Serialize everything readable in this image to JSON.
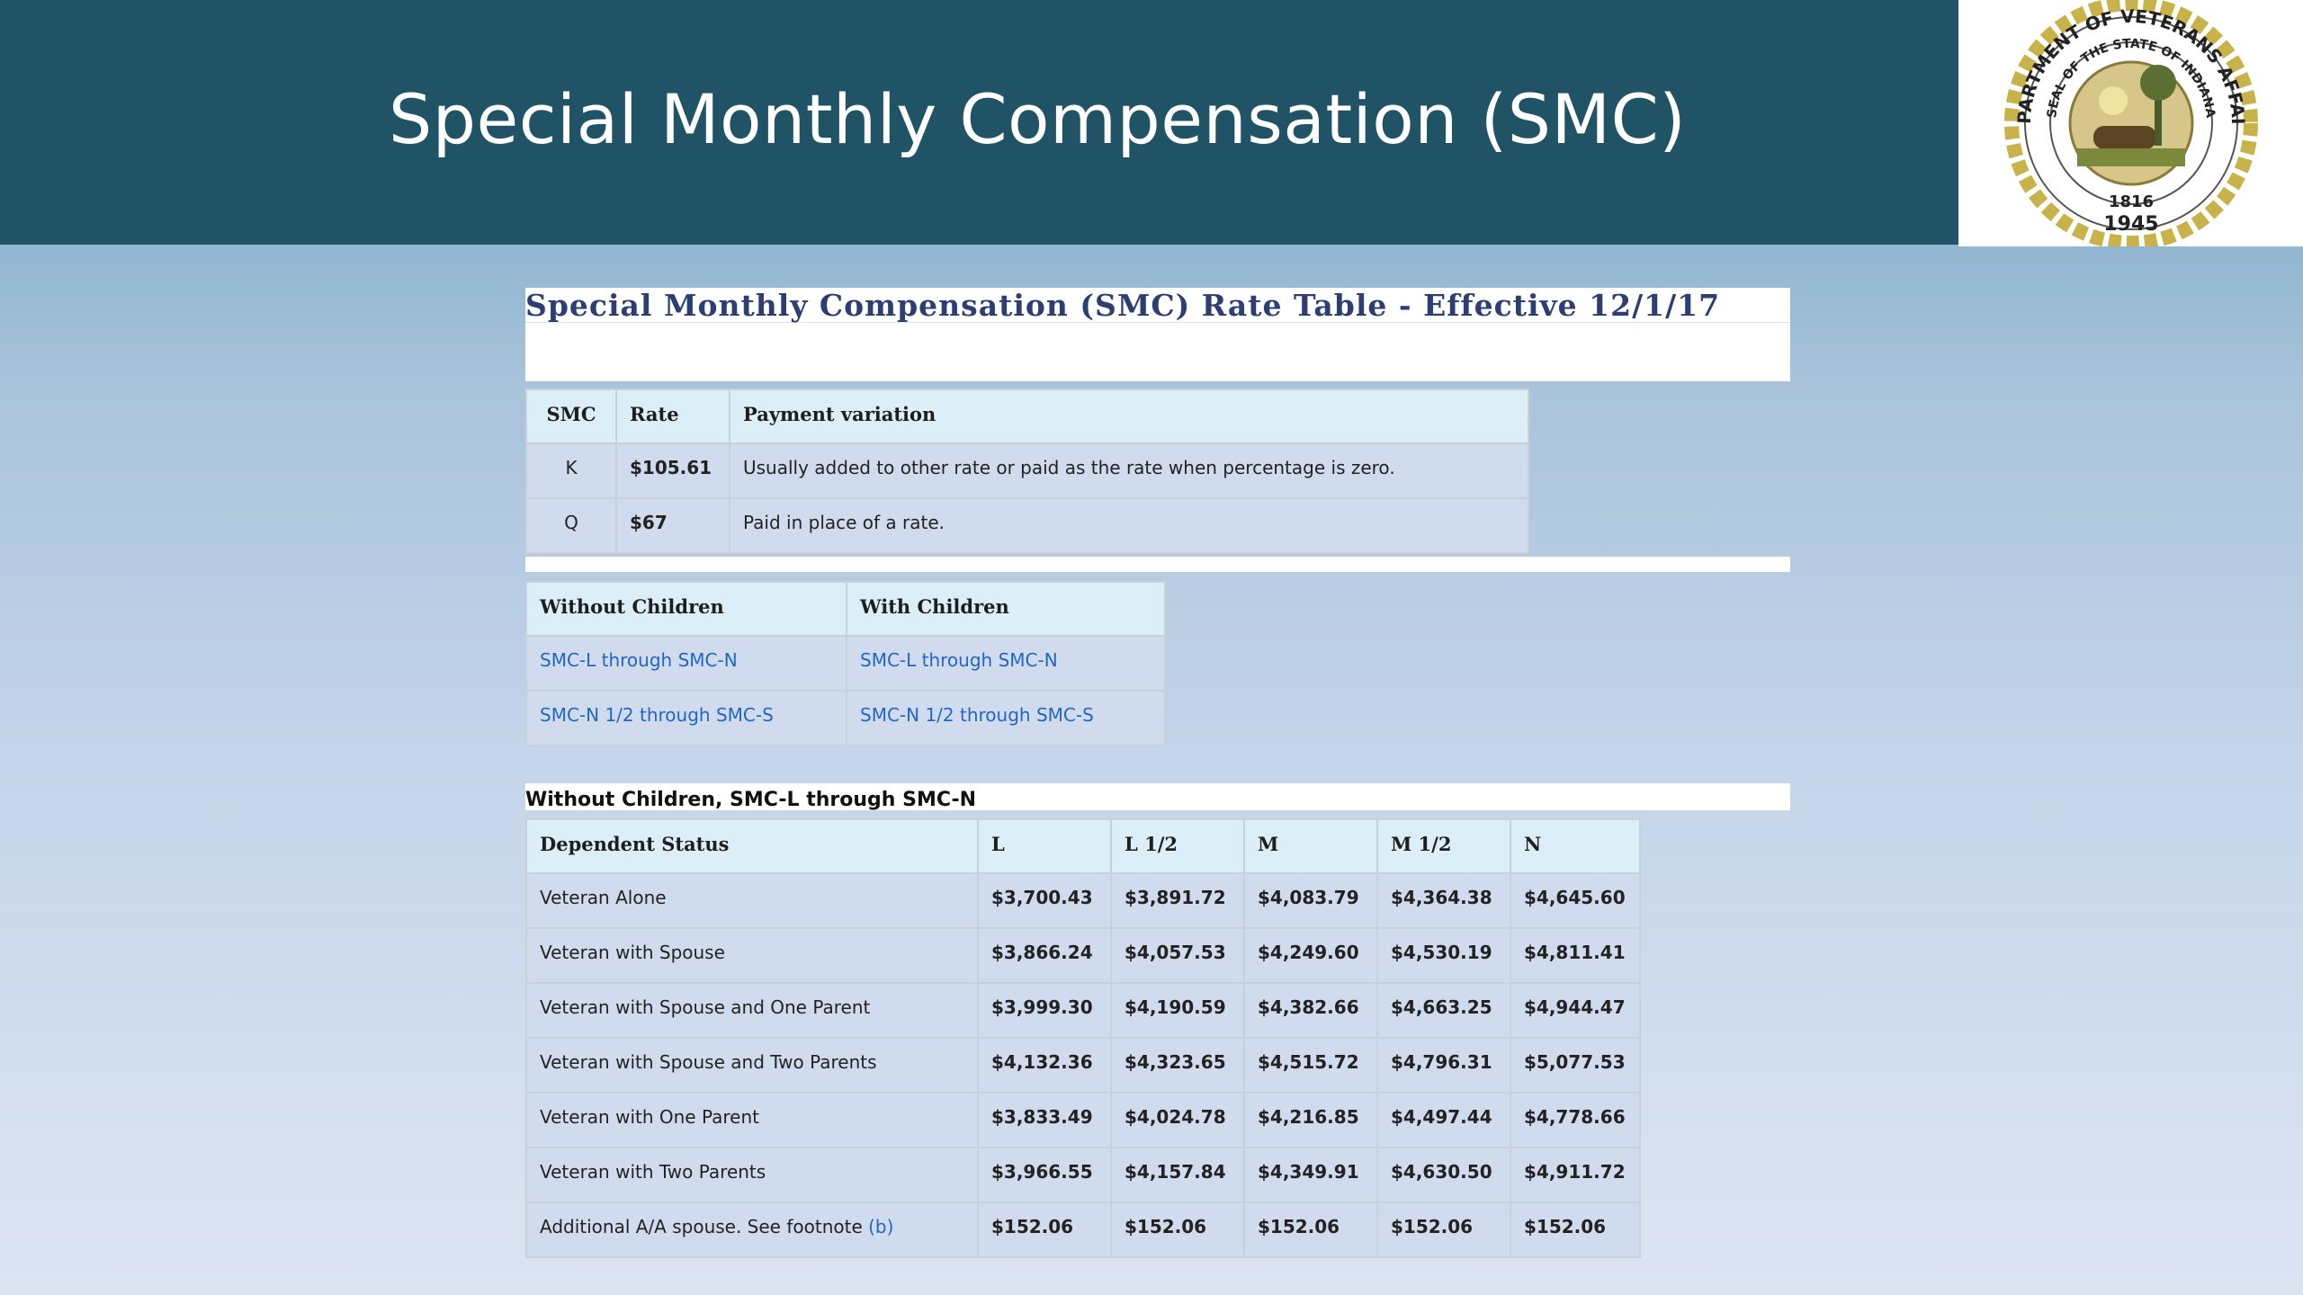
{
  "header": {
    "title": "Special Monthly Compensation (SMC)"
  },
  "seal": {
    "outer_text_top": "DEPARTMENT OF VETERANS AFFAIRS",
    "inner_text": "SEAL OF THE STATE OF INDIANA",
    "year_inner": "1816",
    "year_outer": "1945",
    "colors": {
      "gold": "#b39a2c",
      "ring": "#8a7a3a"
    }
  },
  "doc_title": "Special Monthly Compensation (SMC) Rate Table - Effective 12/1/17",
  "rate_table": {
    "headers": [
      "SMC",
      "Rate",
      "Payment variation"
    ],
    "rows": [
      {
        "smc": "K",
        "rate": "$105.61",
        "variation": "Usually added to other rate or paid as the rate when percentage is zero."
      },
      {
        "smc": "Q",
        "rate": "$67",
        "variation": "Paid in place of a rate."
      }
    ]
  },
  "children_table": {
    "headers": [
      "Without Children",
      "With Children"
    ],
    "rows": [
      [
        "SMC-L through SMC-N",
        "SMC-L through SMC-N"
      ],
      [
        "SMC-N 1/2 through SMC-S",
        "SMC-N 1/2 through SMC-S"
      ]
    ]
  },
  "section_caption": "Without Children, SMC-L through SMC-N",
  "main_table": {
    "headers": [
      "Dependent Status",
      "L",
      "L 1/2",
      "M",
      "M 1/2",
      "N"
    ],
    "rows": [
      {
        "status": "Veteran Alone",
        "values": [
          "$3,700.43",
          "$3,891.72",
          "$4,083.79",
          "$4,364.38",
          "$4,645.60"
        ]
      },
      {
        "status": "Veteran with Spouse",
        "values": [
          "$3,866.24",
          "$4,057.53",
          "$4,249.60",
          "$4,530.19",
          "$4,811.41"
        ]
      },
      {
        "status": "Veteran with Spouse and One Parent",
        "values": [
          "$3,999.30",
          "$4,190.59",
          "$4,382.66",
          "$4,663.25",
          "$4,944.47"
        ]
      },
      {
        "status": "Veteran with Spouse and Two Parents",
        "values": [
          "$4,132.36",
          "$4,323.65",
          "$4,515.72",
          "$4,796.31",
          "$5,077.53"
        ]
      },
      {
        "status": "Veteran with One Parent",
        "values": [
          "$3,833.49",
          "$4,024.78",
          "$4,216.85",
          "$4,497.44",
          "$4,778.66"
        ]
      },
      {
        "status": "Veteran with Two Parents",
        "values": [
          "$3,966.55",
          "$4,157.84",
          "$4,349.91",
          "$4,630.50",
          "$4,911.72"
        ]
      }
    ],
    "footnote_row": {
      "status": "Additional A/A spouse. See footnote",
      "footnote_link": "(b)",
      "values": [
        "$152.06",
        "$152.06",
        "$152.06",
        "$152.06",
        "$152.06"
      ]
    }
  }
}
